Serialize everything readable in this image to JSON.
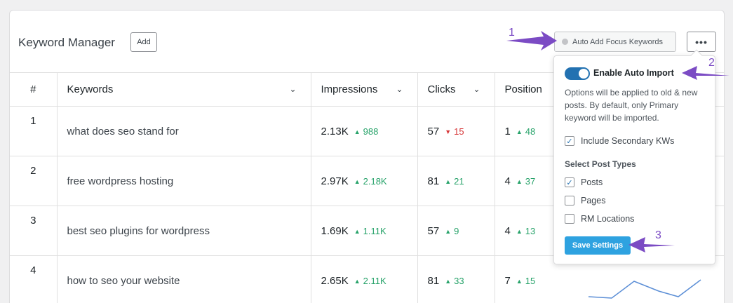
{
  "header": {
    "title": "Keyword Manager",
    "add_label": "Add",
    "auto_add_label": "Auto Add Focus Keywords",
    "more_label": "•••"
  },
  "table": {
    "columns": [
      "#",
      "Keywords",
      "Impressions",
      "Clicks",
      "Position"
    ],
    "rows": [
      {
        "num": "1",
        "keyword": "what does seo stand for",
        "impressions": "2.13K",
        "imp_delta": "988",
        "imp_dir": "up",
        "clicks": "57",
        "clk_delta": "15",
        "clk_dir": "down",
        "position": "1",
        "pos_delta": "48",
        "pos_dir": "up"
      },
      {
        "num": "2",
        "keyword": "free wordpress hosting",
        "impressions": "2.97K",
        "imp_delta": "2.18K",
        "imp_dir": "up",
        "clicks": "81",
        "clk_delta": "21",
        "clk_dir": "up",
        "position": "4",
        "pos_delta": "37",
        "pos_dir": "up"
      },
      {
        "num": "3",
        "keyword": "best seo plugins for wordpress",
        "impressions": "1.69K",
        "imp_delta": "1.11K",
        "imp_dir": "up",
        "clicks": "57",
        "clk_delta": "9",
        "clk_dir": "up",
        "position": "4",
        "pos_delta": "13",
        "pos_dir": "up"
      },
      {
        "num": "4",
        "keyword": "how to seo your website",
        "impressions": "2.65K",
        "imp_delta": "2.11K",
        "imp_dir": "up",
        "clicks": "81",
        "clk_delta": "33",
        "clk_dir": "up",
        "position": "7",
        "pos_delta": "15",
        "pos_dir": "up"
      }
    ]
  },
  "popup": {
    "enable_label": "Enable Auto Import",
    "enabled": true,
    "description": "Options will be applied to old & new posts. By default, only Primary keyword will be imported.",
    "include_secondary": "Include Secondary KWs",
    "include_secondary_checked": true,
    "section_title": "Select Post Types",
    "post_types": [
      {
        "label": "Posts",
        "checked": true
      },
      {
        "label": "Pages",
        "checked": false
      },
      {
        "label": "RM Locations",
        "checked": false
      }
    ],
    "save_label": "Save Settings"
  },
  "annotations": [
    "1",
    "2",
    "3"
  ],
  "colors": {
    "accent": "#2271b1",
    "up": "#26a269",
    "down": "#d63638",
    "annotation": "#7b4bc4",
    "save": "#2ea2e0"
  }
}
